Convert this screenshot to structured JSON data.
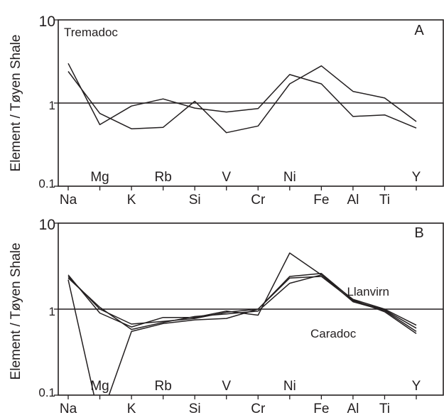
{
  "chart_data": [
    {
      "type": "line",
      "panel_label": "A",
      "annotations": [
        "Tremadoc"
      ],
      "categories": [
        "Na",
        "Mg",
        "K",
        "Rb",
        "Si",
        "V",
        "Cr",
        "Ni",
        "Fe",
        "Al",
        "Ti",
        "Y"
      ],
      "upper_tick_labels": [
        "Mg",
        "Rb",
        "V",
        "Ni",
        "Y"
      ],
      "lower_tick_labels": [
        "Na",
        "K",
        "Si",
        "Cr",
        "Fe",
        "Al",
        "Ti"
      ],
      "ylabel": "Element / Tøyen Shale",
      "yscale": "log",
      "ylim": [
        0.1,
        10
      ],
      "ytick_labels": [
        "10",
        "1",
        "0.1"
      ],
      "reference_line": 1,
      "series": [
        {
          "values": [
            3.0,
            0.55,
            0.92,
            1.12,
            0.87,
            0.78,
            0.86,
            2.2,
            1.7,
            0.69,
            0.72,
            0.5
          ]
        },
        {
          "values": [
            2.4,
            0.75,
            0.49,
            0.51,
            1.05,
            0.44,
            0.53,
            1.7,
            2.8,
            1.38,
            1.15,
            0.6
          ]
        }
      ]
    },
    {
      "type": "line",
      "panel_label": "B",
      "annotations": [
        "Llanvirn",
        "Caradoc"
      ],
      "categories": [
        "Na",
        "Mg",
        "K",
        "Rb",
        "Si",
        "V",
        "Cr",
        "Ni",
        "Fe",
        "Al",
        "Ti",
        "Y"
      ],
      "upper_tick_labels": [
        "Mg",
        "Rb",
        "V",
        "Ni",
        "Y"
      ],
      "lower_tick_labels": [
        "Na",
        "K",
        "Si",
        "Cr",
        "Fe",
        "Al",
        "Ti"
      ],
      "ylabel": "Element / Tøyen Shale",
      "yscale": "log",
      "ylim": [
        0.1,
        10
      ],
      "ytick_labels": [
        "10",
        "1",
        "0.1"
      ],
      "reference_line": 1,
      "series": [
        {
          "values": [
            2.5,
            0.9,
            0.62,
            0.8,
            0.8,
            0.95,
            0.85,
            4.5,
            2.5,
            1.3,
            1.0,
            0.65
          ]
        },
        {
          "values": [
            2.4,
            1.0,
            0.67,
            0.72,
            0.78,
            0.92,
            1.0,
            2.3,
            2.4,
            1.25,
            0.98,
            0.6
          ]
        },
        {
          "values": [
            2.3,
            1.05,
            0.58,
            0.7,
            0.82,
            0.88,
            0.95,
            2.0,
            2.5,
            1.22,
            0.96,
            0.55
          ]
        },
        {
          "values": [
            2.2,
            0.05,
            0.55,
            0.68,
            0.75,
            0.78,
            1.0,
            2.4,
            2.6,
            1.28,
            0.93,
            0.52
          ]
        }
      ]
    }
  ]
}
